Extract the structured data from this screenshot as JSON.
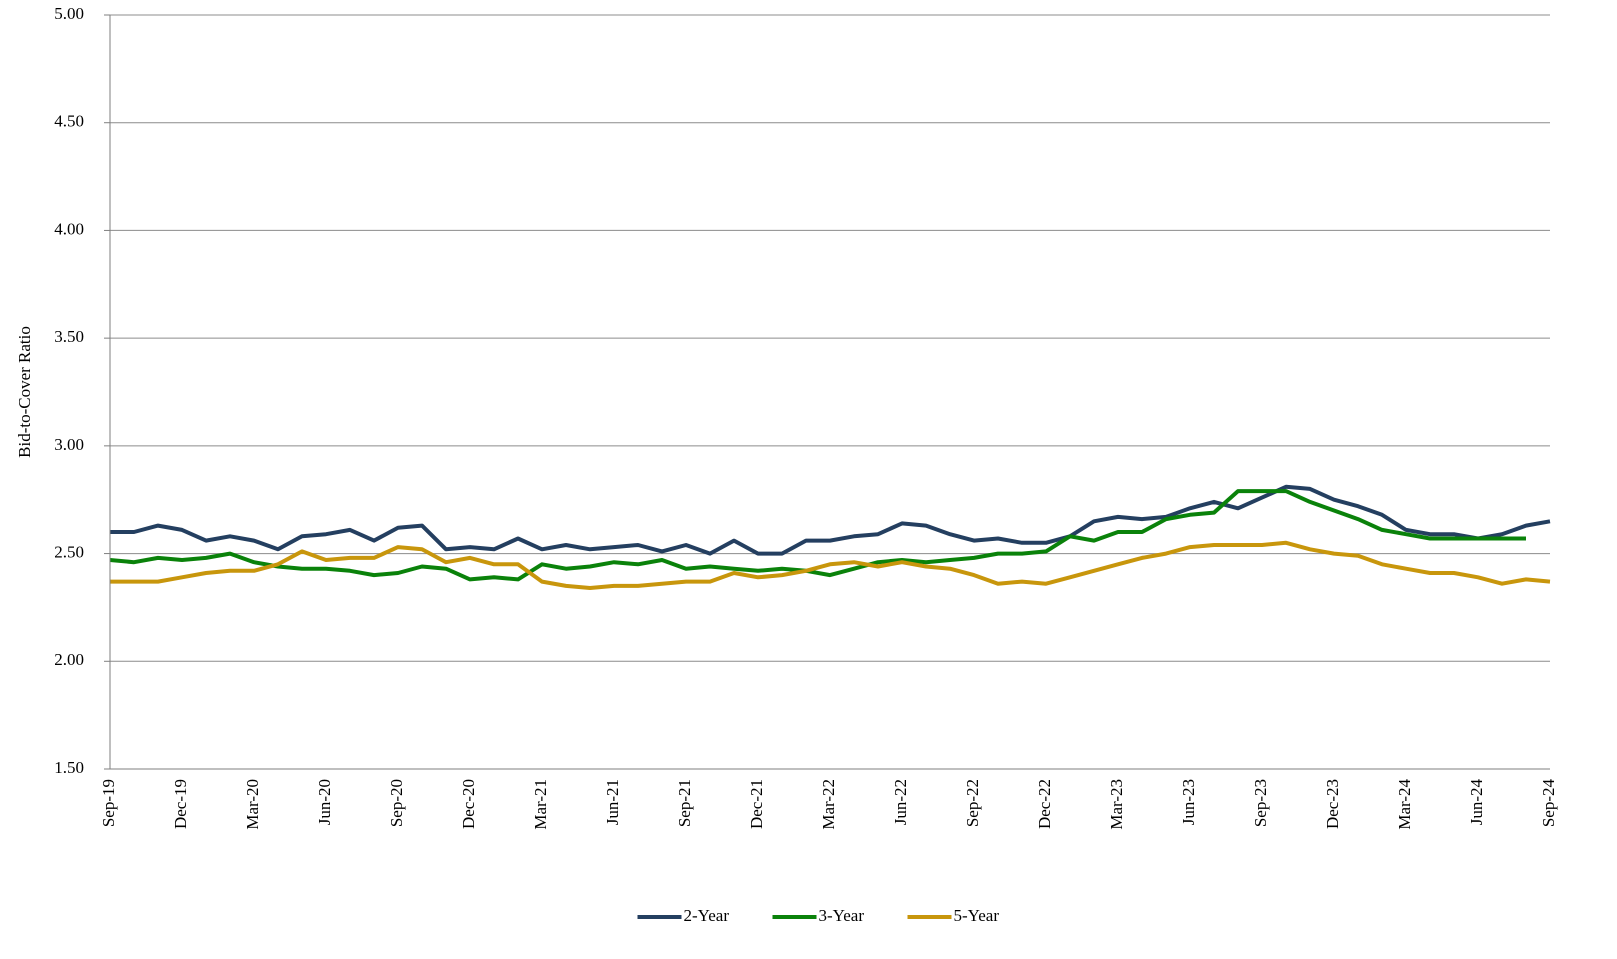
{
  "chart_data": {
    "type": "line",
    "y_label": "Bid-to-Cover Ratio",
    "categories": [
      "Sep-19",
      null,
      null,
      "Dec-19",
      null,
      null,
      "Mar-20",
      null,
      null,
      "Jun-20",
      null,
      null,
      "Sep-20",
      null,
      null,
      "Dec-20",
      null,
      null,
      "Mar-21",
      null,
      null,
      "Jun-21",
      null,
      null,
      "Sep-21",
      null,
      null,
      "Dec-21",
      null,
      null,
      "Mar-22",
      null,
      null,
      "Jun-22",
      null,
      null,
      "Sep-22",
      null,
      null,
      "Dec-22",
      null,
      null,
      "Mar-23",
      null,
      null,
      "Jun-23",
      null,
      null,
      "Sep-23",
      null,
      null,
      "Dec-23",
      null,
      null,
      "Mar-24",
      null,
      null,
      "Jun-24",
      null,
      null,
      "Sep-24"
    ],
    "series": [
      {
        "name": "2-Year",
        "color": "#243f60",
        "values": [
          2.6,
          2.6,
          2.63,
          2.61,
          2.56,
          2.58,
          2.56,
          2.52,
          2.58,
          2.59,
          2.61,
          2.56,
          2.62,
          2.63,
          2.52,
          2.53,
          2.52,
          2.57,
          2.52,
          2.54,
          2.52,
          2.53,
          2.54,
          2.51,
          2.54,
          2.5,
          2.56,
          2.5,
          2.5,
          2.56,
          2.56,
          2.58,
          2.59,
          2.64,
          2.63,
          2.59,
          2.56,
          2.57,
          2.55,
          2.55,
          2.58,
          2.65,
          2.67,
          2.66,
          2.67,
          2.71,
          2.74,
          2.71,
          2.76,
          2.81,
          2.8,
          2.75,
          2.72,
          2.68,
          2.61,
          2.59,
          2.59,
          2.57,
          2.59,
          2.63,
          2.65
        ]
      },
      {
        "name": "3-Year",
        "color": "#0a820a",
        "values": [
          2.47,
          2.46,
          2.48,
          2.47,
          2.48,
          2.5,
          2.46,
          2.44,
          2.43,
          2.43,
          2.42,
          2.4,
          2.41,
          2.44,
          2.43,
          2.38,
          2.39,
          2.38,
          2.45,
          2.43,
          2.44,
          2.46,
          2.45,
          2.47,
          2.43,
          2.44,
          2.43,
          2.42,
          2.43,
          2.42,
          2.4,
          2.43,
          2.46,
          2.47,
          2.46,
          2.47,
          2.48,
          2.5,
          2.5,
          2.51,
          2.58,
          2.56,
          2.6,
          2.6,
          2.66,
          2.68,
          2.69,
          2.79,
          2.79,
          2.79,
          2.74,
          2.7,
          2.66,
          2.61,
          2.59,
          2.57,
          2.57,
          2.57,
          2.57,
          2.57,
          null
        ]
      },
      {
        "name": "5-Year",
        "color": "#c8960c",
        "values": [
          2.37,
          2.37,
          2.37,
          2.39,
          2.41,
          2.42,
          2.42,
          2.45,
          2.51,
          2.47,
          2.48,
          2.48,
          2.53,
          2.52,
          2.46,
          2.48,
          2.45,
          2.45,
          2.37,
          2.35,
          2.34,
          2.35,
          2.35,
          2.36,
          2.37,
          2.37,
          2.41,
          2.39,
          2.4,
          2.42,
          2.45,
          2.46,
          2.44,
          2.46,
          2.44,
          2.43,
          2.4,
          2.36,
          2.37,
          2.36,
          2.39,
          2.42,
          2.45,
          2.48,
          2.5,
          2.53,
          2.54,
          2.54,
          2.54,
          2.55,
          2.52,
          2.5,
          2.49,
          2.45,
          2.43,
          2.41,
          2.41,
          2.39,
          2.36,
          2.38,
          2.37
        ]
      }
    ],
    "ylim": [
      1.5,
      5
    ],
    "yticks": [
      {
        "value": 1.5,
        "label": "1.50"
      },
      {
        "value": 2,
        "label": "2.00"
      },
      {
        "value": 2.5,
        "label": "2.50"
      },
      {
        "value": 3,
        "label": "3.00"
      },
      {
        "value": 3.5,
        "label": "3.50"
      },
      {
        "value": 4,
        "label": "4.00"
      },
      {
        "value": 4.5,
        "label": "4.50"
      },
      {
        "value": 5,
        "label": "5.00"
      }
    ],
    "grid": true,
    "legend": "bottom"
  }
}
